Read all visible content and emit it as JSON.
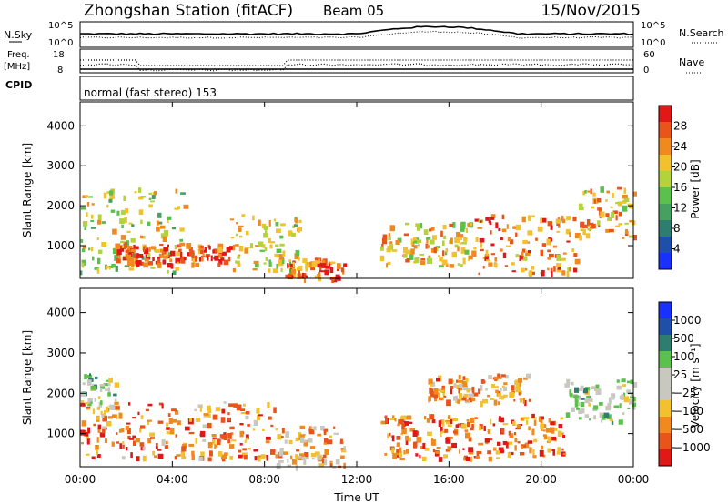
{
  "header": {
    "station": "Zhongshan Station (fitACF)",
    "beam": "Beam 05",
    "date": "15/Nov/2015"
  },
  "panels": {
    "nsky_label": "N.Sky",
    "nsky_ticks": [
      "10^5",
      "10^0"
    ],
    "nsearch_label": "N.Search",
    "nsearch_ticks": [
      "10^5",
      "10^0"
    ],
    "freq_label": "Freq.",
    "freq_unit": "[MHz]",
    "freq_ticks": [
      "18",
      "8"
    ],
    "nave_label": "Nave",
    "nave_ticks": [
      "60",
      "0"
    ],
    "cpid_label": "CPID",
    "mode_text": "normal (fast stereo) 153"
  },
  "chart_data": [
    {
      "type": "heatmap",
      "title": "",
      "xlabel": "Time UT",
      "ylabel": "Slant Range [km]",
      "x_ticks": [
        "00:00",
        "04:00",
        "08:00",
        "12:00",
        "16:00",
        "20:00",
        "00:00"
      ],
      "y_ticks": [
        1000,
        2000,
        3000,
        4000
      ],
      "ylim": [
        180,
        4600
      ],
      "colorbar": {
        "label": "Power [dB]",
        "ticks": [
          "4",
          "8",
          "12",
          "16",
          "20",
          "24",
          "28"
        ],
        "colors": [
          "#1a30ff",
          "#1f4fa8",
          "#2e7d6e",
          "#45a062",
          "#5cc14c",
          "#b4d23c",
          "#f2c12e",
          "#f08a1e",
          "#e8541a",
          "#e01818"
        ]
      },
      "echo_regions": [
        {
          "t0": 0.0,
          "t1": 4.5,
          "r0": 350,
          "r1": 2500,
          "level": 0.55
        },
        {
          "t0": 1.5,
          "t1": 6.5,
          "r0": 550,
          "r1": 1100,
          "level": 0.9
        },
        {
          "t0": 6.5,
          "t1": 9.5,
          "r0": 400,
          "r1": 1800,
          "level": 0.6
        },
        {
          "t0": 8.8,
          "t1": 11.5,
          "r0": 200,
          "r1": 700,
          "level": 0.85
        },
        {
          "t0": 13.0,
          "t1": 17.0,
          "r0": 500,
          "r1": 1600,
          "level": 0.65
        },
        {
          "t0": 17.0,
          "t1": 21.5,
          "r0": 300,
          "r1": 1800,
          "level": 0.8
        },
        {
          "t0": 21.5,
          "t1": 24.0,
          "r0": 1200,
          "r1": 2500,
          "level": 0.7
        }
      ]
    },
    {
      "type": "heatmap",
      "title": "",
      "xlabel": "Time UT",
      "ylabel": "Slant Range [km]",
      "x_ticks": [
        "00:00",
        "04:00",
        "08:00",
        "12:00",
        "16:00",
        "20:00",
        "00:00"
      ],
      "y_ticks": [
        1000,
        2000,
        3000,
        4000
      ],
      "ylim": [
        180,
        4600
      ],
      "colorbar": {
        "label": "Velocity [m s⁻¹]",
        "ticks": [
          "1000",
          "500",
          "100",
          "25",
          "−25",
          "−100",
          "−500",
          "−1000"
        ],
        "colors": [
          "#1a30ff",
          "#1f4fa8",
          "#2e7d6e",
          "#5cc14c",
          "#c8c8c0",
          "#c8c8c0",
          "#f2c12e",
          "#f08a1e",
          "#e8541a",
          "#e01818"
        ]
      },
      "echo_regions": [
        {
          "t0": 0.0,
          "t1": 1.5,
          "r0": 1700,
          "r1": 2500,
          "level": 0.45
        },
        {
          "t0": 0.0,
          "t1": 8.5,
          "r0": 400,
          "r1": 1800,
          "level": 0.8
        },
        {
          "t0": 8.5,
          "t1": 11.5,
          "r0": 200,
          "r1": 1200,
          "level": 0.7
        },
        {
          "t0": 13.0,
          "t1": 21.0,
          "r0": 400,
          "r1": 1500,
          "level": 0.85
        },
        {
          "t0": 15.0,
          "t1": 19.5,
          "r0": 1800,
          "r1": 2500,
          "level": 0.75
        },
        {
          "t0": 21.0,
          "t1": 24.0,
          "r0": 1300,
          "r1": 2400,
          "level": 0.45
        }
      ]
    }
  ]
}
